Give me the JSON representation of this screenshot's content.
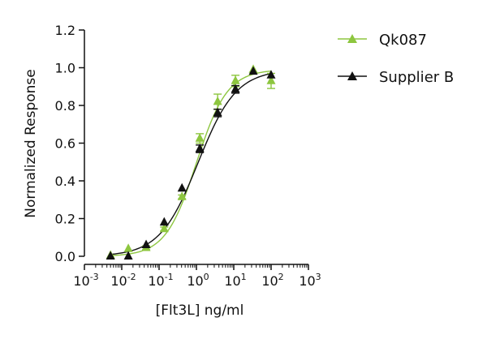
{
  "chart_data": {
    "type": "scatter",
    "title": "",
    "xlabel": "[Flt3L] ng/ml",
    "ylabel": "Normalized Response",
    "xscale": "log10",
    "xlim": [
      0.001,
      1000
    ],
    "ylim": [
      0,
      1.2
    ],
    "x_tick_exponents": [
      "-3",
      "-2",
      "-1",
      "0",
      "1",
      "2",
      "3"
    ],
    "x_tick_base": "10",
    "y_ticks": [
      "0.0",
      "0.2",
      "0.4",
      "0.6",
      "0.8",
      "1.0",
      "1.2"
    ],
    "legend_position": "top-right",
    "series": [
      {
        "name": "Qk087",
        "color": "#8dc63f",
        "marker": "triangle",
        "x": [
          0.005,
          0.015,
          0.045,
          0.137,
          0.41,
          1.23,
          3.7,
          11.1,
          33.3,
          100
        ],
        "y": [
          0.005,
          0.04,
          0.045,
          0.145,
          0.315,
          0.625,
          0.82,
          0.93,
          0.99,
          0.93
        ],
        "error": [
          0.0,
          0.0,
          0.01,
          0.01,
          0.01,
          0.025,
          0.04,
          0.03,
          0.0,
          0.04
        ],
        "fit": {
          "bottom": 0.0,
          "top": 0.99,
          "ec50": 1.0,
          "hill": 1.05
        }
      },
      {
        "name": "Supplier B",
        "color": "#111111",
        "marker": "triangle",
        "x": [
          0.005,
          0.015,
          0.045,
          0.137,
          0.41,
          1.23,
          3.7,
          11.1,
          33.3,
          100
        ],
        "y": [
          0.0,
          0.0,
          0.06,
          0.18,
          0.36,
          0.57,
          0.76,
          0.885,
          0.98,
          0.96
        ],
        "error": [
          0.0,
          0.0,
          0.0,
          0.0,
          0.0,
          0.02,
          0.02,
          0.02,
          0.0,
          0.0
        ],
        "fit": {
          "bottom": 0.0,
          "top": 0.99,
          "ec50": 1.1,
          "hill": 0.85
        }
      }
    ]
  }
}
